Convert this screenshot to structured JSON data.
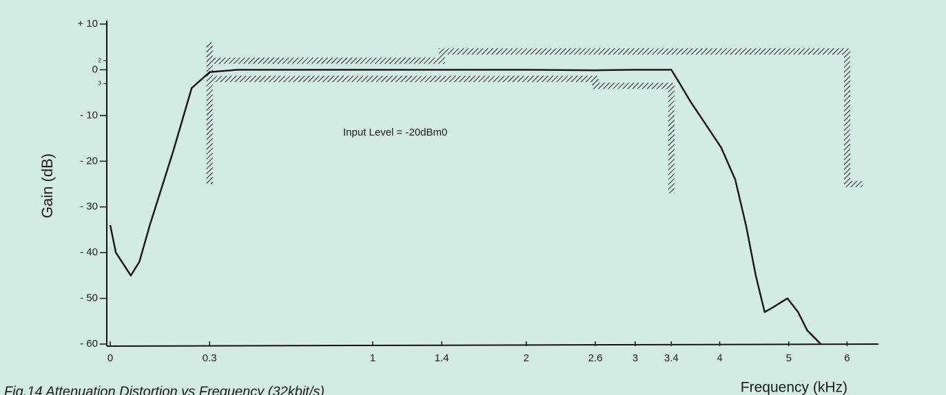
{
  "chart_data": {
    "type": "line",
    "ylabel": "Gain (dB)",
    "xlabel": "Frequency (kHz)",
    "caption": "Fig.14 Attenuation Distortion vs Frequency (32kbit/s)",
    "annotation": "Input Level = -20dBm0",
    "xlim": [
      0,
      6.4
    ],
    "ylim": [
      -60,
      10
    ],
    "xticks": [
      0,
      0.3,
      1,
      1.4,
      2,
      2.6,
      3,
      3.4,
      4,
      5,
      6
    ],
    "yticks": [
      {
        "value": 10,
        "label": "+ 10"
      },
      0,
      {
        "value": -10,
        "label": "- 10"
      },
      {
        "value": -20,
        "label": "- 20"
      },
      {
        "value": -30,
        "label": "- 30"
      },
      {
        "value": -40,
        "label": "- 40"
      },
      {
        "value": -50,
        "label": "- 50"
      },
      {
        "value": -60,
        "label": "- 60"
      }
    ],
    "yminorticks": [
      2,
      {
        "value": -3,
        "label": "3"
      }
    ],
    "series": [
      {
        "color": "#1a1a1a",
        "x": [
          0,
          0.015,
          0.056,
          0.08,
          0.11,
          0.18,
          0.24,
          0.3,
          0.4,
          1,
          2,
          2.6,
          3,
          3.4,
          3.5,
          3.63,
          4.02,
          4.21,
          4.36,
          4.5,
          4.63,
          4.75,
          4.98,
          5.15,
          5.3,
          5.53
        ],
        "values": [
          -34,
          -40,
          -45,
          -42,
          -34,
          -18,
          -4,
          -0.5,
          0,
          0,
          0,
          -0.1,
          0,
          0,
          -3,
          -7,
          -17,
          -24,
          -34,
          -45,
          -53,
          -52,
          -50,
          -53,
          -57,
          -60
        ]
      }
    ],
    "masks": [
      {
        "color": "#333333",
        "x": [
          0.3,
          0.3
        ],
        "values": [
          6,
          -25
        ]
      },
      {
        "color": "#333333",
        "x": [
          0.3,
          1.4,
          1.4,
          6,
          6,
          6.3
        ],
        "values": [
          2,
          2,
          4,
          4,
          -25,
          -25
        ]
      },
      {
        "color": "#333333",
        "x": [
          0.3,
          2.6,
          2.6,
          3.4,
          3.4
        ],
        "values": [
          -2,
          -2,
          -3.5,
          -3.5,
          -27
        ]
      }
    ]
  }
}
